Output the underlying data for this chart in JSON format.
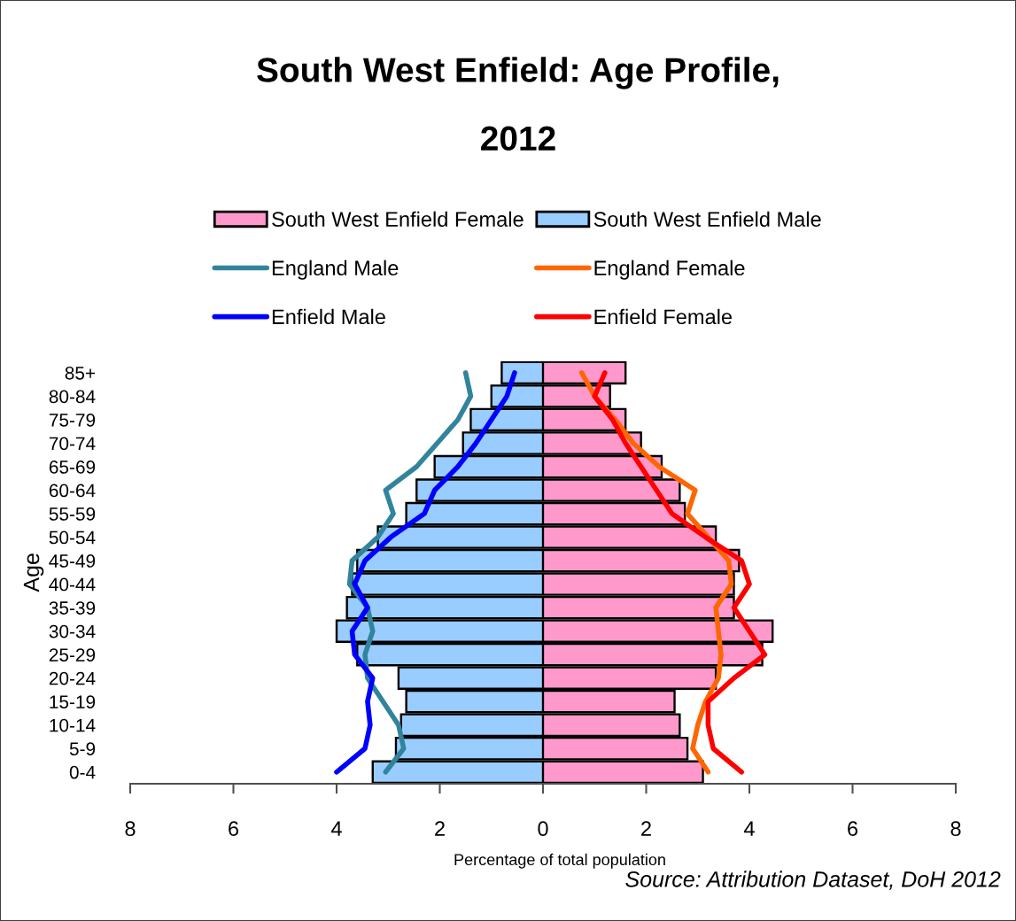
{
  "chart_data": [
    {
      "type": "bar",
      "orientation": "horizontal",
      "title": "South West Enfield: Age Profile,\n2012",
      "ylabel": "Age",
      "categories": [
        "85+",
        "80-84",
        "75-79",
        "70-74",
        "65-69",
        "60-64",
        "55-59",
        "50-54",
        "45-49",
        "40-44",
        "35-39",
        "30-34",
        "25-29",
        "20-24",
        "15-19",
        "10-14",
        "5-9",
        "0-4"
      ],
      "series": [
        {
          "name": "South West Enfield Male",
          "type": "bar",
          "color": "#99ccff",
          "values": [
            0.8,
            1.0,
            1.4,
            1.55,
            2.1,
            2.45,
            2.65,
            3.2,
            3.6,
            3.7,
            3.8,
            4.0,
            3.6,
            2.8,
            2.65,
            2.75,
            2.85,
            3.3
          ]
        },
        {
          "name": "England Male",
          "type": "line",
          "color": "#31849b",
          "values": [
            1.5,
            1.4,
            1.65,
            2.05,
            2.45,
            3.05,
            2.9,
            3.2,
            3.7,
            3.75,
            3.4,
            3.3,
            3.45,
            3.4,
            3.1,
            2.8,
            2.7,
            3.05
          ]
        },
        {
          "name": "Enfield Male",
          "type": "line",
          "color": "#0000ff",
          "values": [
            0.55,
            0.7,
            1.0,
            1.3,
            1.65,
            2.1,
            2.3,
            2.95,
            3.45,
            3.65,
            3.4,
            3.7,
            3.65,
            3.3,
            3.4,
            3.35,
            3.45,
            4.0
          ]
        }
      ],
      "xlim": [
        8,
        0
      ],
      "xticks": [
        8,
        6,
        4,
        2
      ],
      "legend": "top",
      "line_style": "solid"
    },
    {
      "type": "bar",
      "orientation": "horizontal",
      "xlabel": "Percentage of total population",
      "annotations": [
        "Source: Attribution Dataset, DoH 2012"
      ],
      "categories": [
        null,
        null,
        null,
        null,
        null,
        null,
        null,
        null,
        null,
        null,
        null,
        null,
        null,
        null,
        null,
        null,
        null,
        null
      ],
      "series": [
        {
          "name": "South West Enfield Female",
          "type": "bar",
          "color": "#ff99cc",
          "values": [
            1.6,
            1.3,
            1.6,
            1.9,
            2.3,
            2.65,
            2.75,
            3.35,
            3.8,
            3.7,
            3.7,
            4.45,
            4.25,
            3.35,
            2.55,
            2.65,
            2.8,
            3.1
          ]
        },
        {
          "name": "England Female",
          "type": "line",
          "color": "#ff6600",
          "values": [
            0.75,
            1.0,
            1.4,
            1.75,
            2.25,
            2.95,
            2.8,
            3.2,
            3.6,
            3.65,
            3.35,
            3.4,
            3.45,
            3.4,
            3.15,
            3.0,
            2.9,
            3.2
          ]
        },
        {
          "name": "Enfield Female",
          "type": "line",
          "color": "#ff0000",
          "values": [
            1.2,
            1.0,
            1.35,
            1.6,
            1.9,
            2.2,
            2.5,
            3.15,
            3.85,
            4.0,
            3.7,
            4.0,
            4.3,
            3.7,
            3.2,
            3.2,
            3.3,
            3.85
          ]
        }
      ],
      "xlim": [
        0,
        8
      ],
      "xticks": [
        0,
        2,
        4,
        6,
        8
      ],
      "tick_labels": "x",
      "legend": "top",
      "line_style": "solid"
    }
  ]
}
